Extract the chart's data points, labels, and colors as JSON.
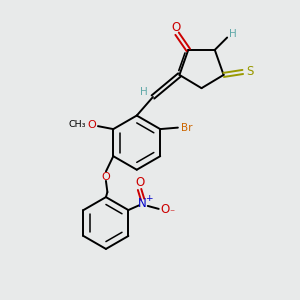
{
  "bg_color": "#e8eaea",
  "bond_color": "#000000",
  "colors": {
    "O": "#cc0000",
    "N": "#0000cc",
    "S_thioxo": "#999900",
    "Br": "#cc6600",
    "H": "#5fa8a8",
    "C": "#000000"
  },
  "lw": 1.4,
  "lw_inner": 1.1
}
